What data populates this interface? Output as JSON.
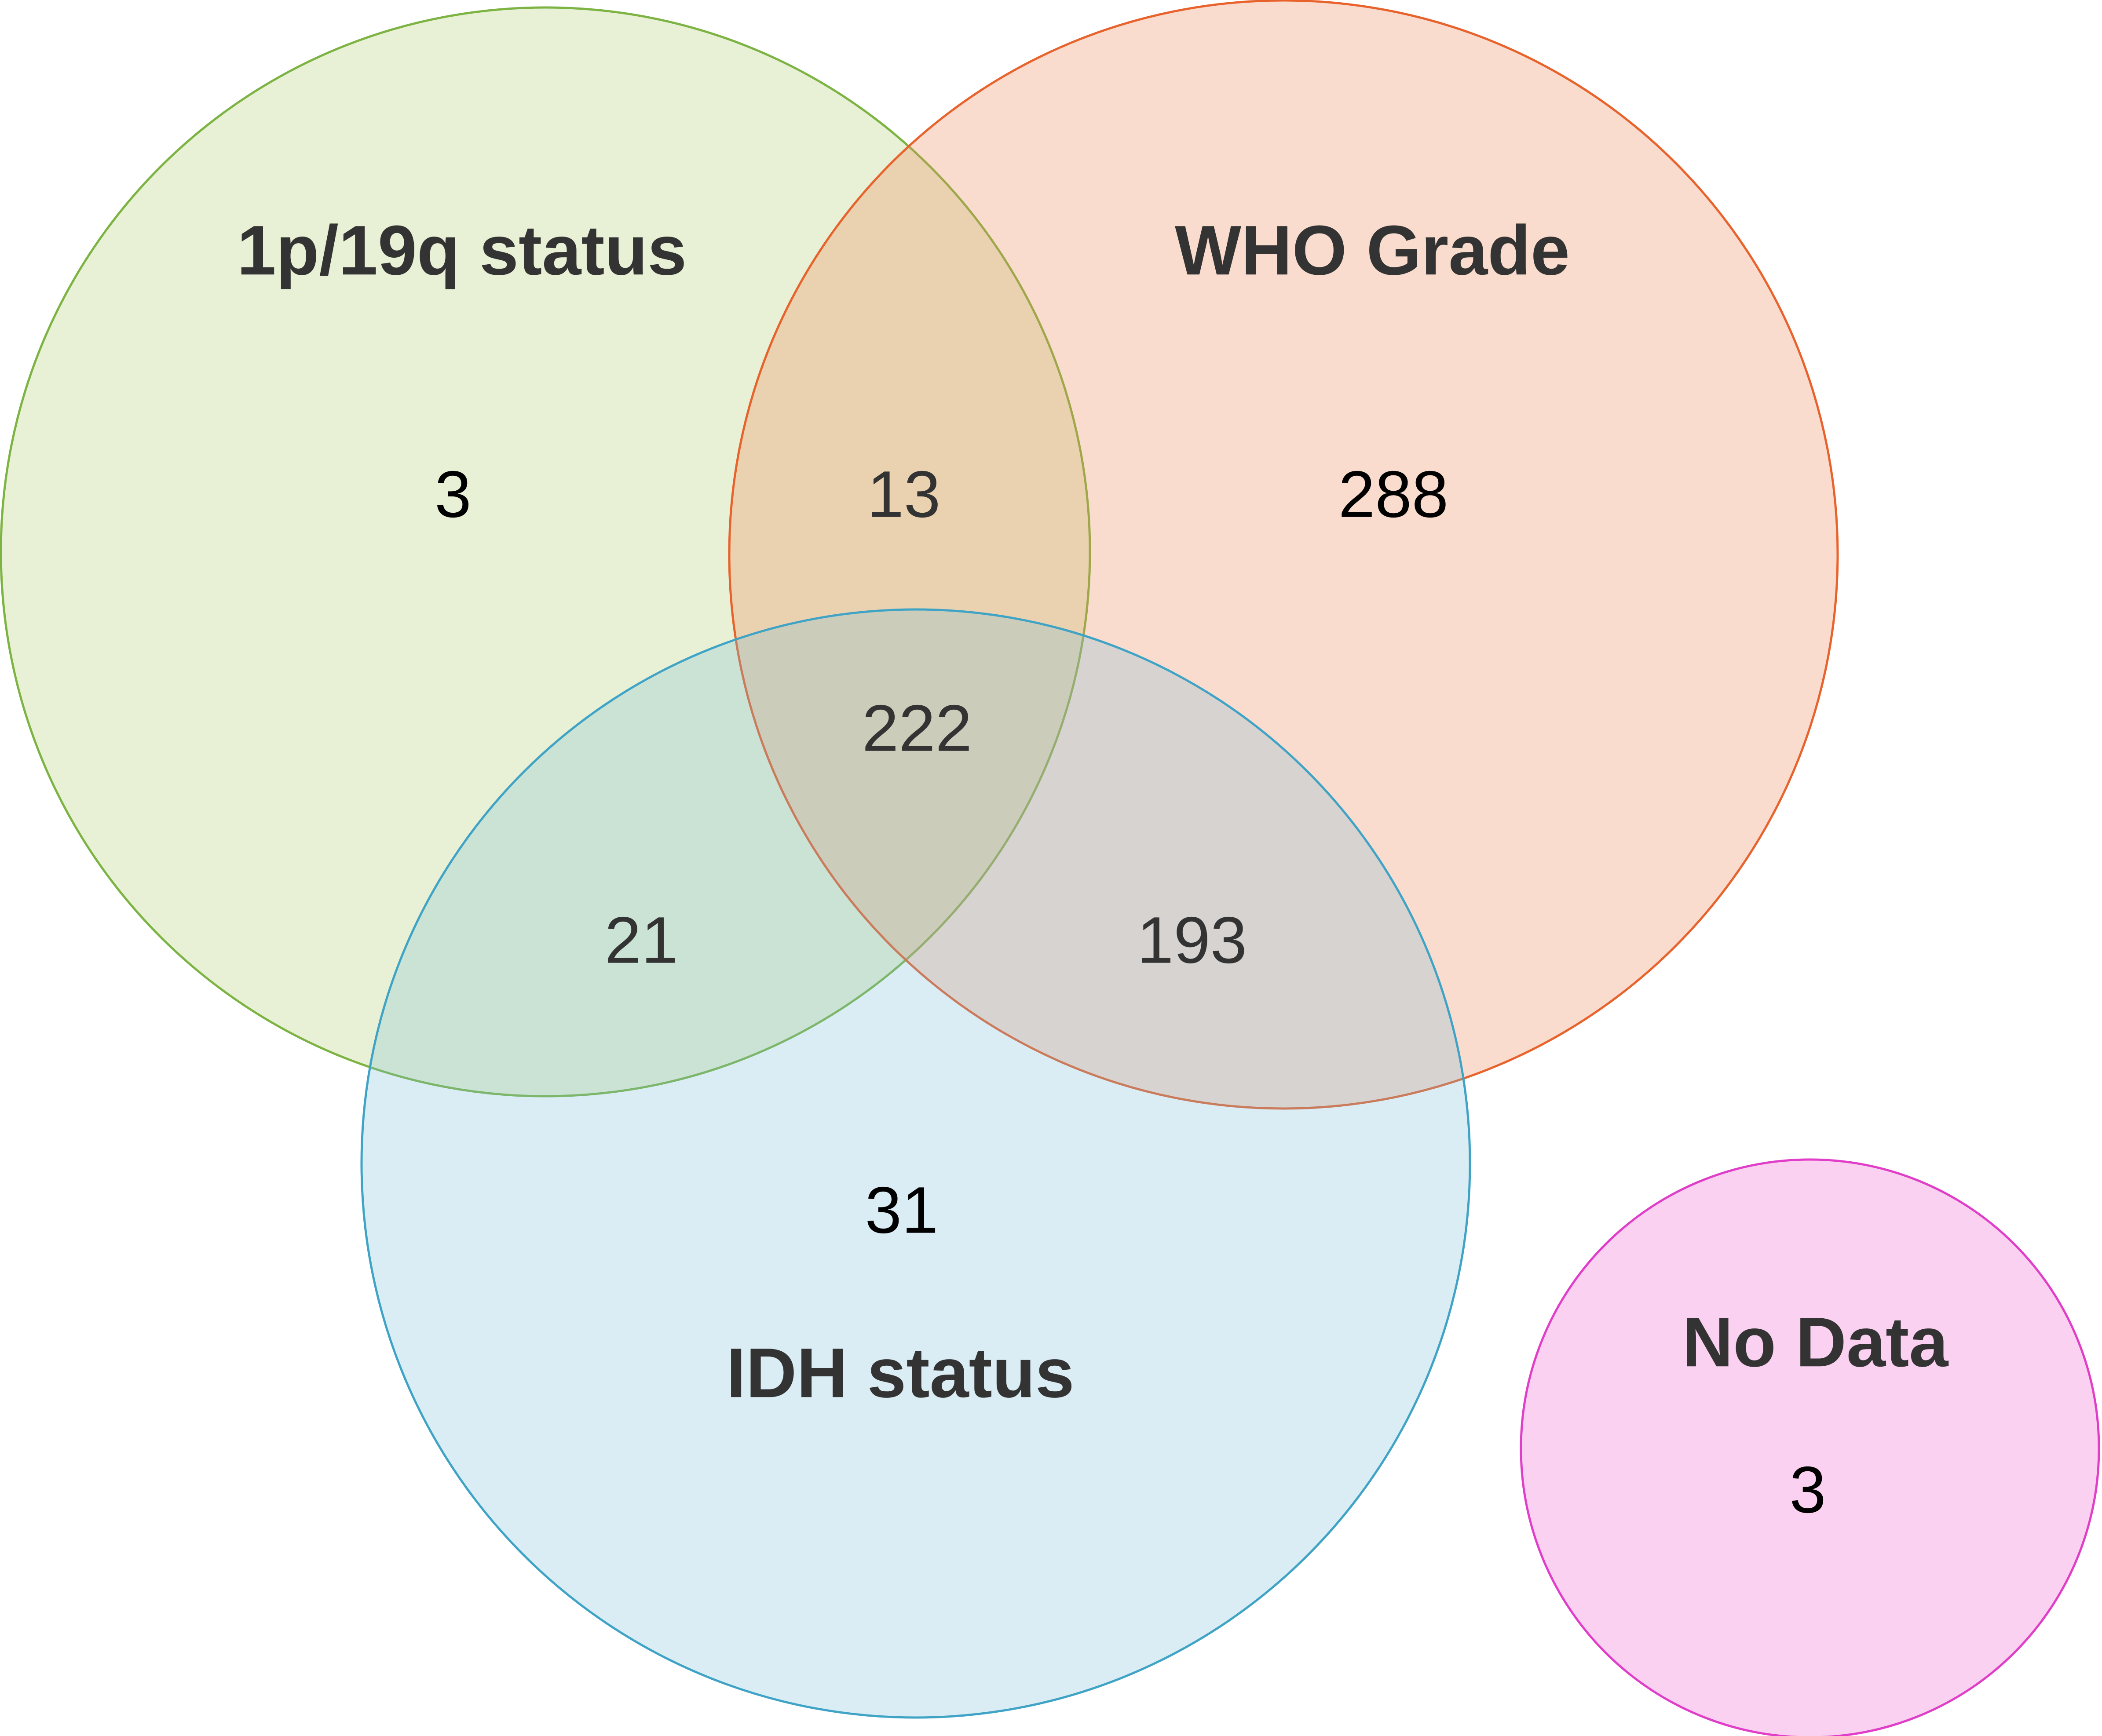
{
  "sets": [
    {
      "id": "1p19q",
      "label": "1p/19q status",
      "fill": "#8DB92E",
      "stroke": "#7CB342"
    },
    {
      "id": "who",
      "label": "WHO Grade",
      "fill": "#F08A5D",
      "stroke": "#E8622C"
    },
    {
      "id": "idh",
      "label": "IDH status",
      "fill": "#7EC0D8",
      "stroke": "#3FA3C6"
    },
    {
      "id": "nodata",
      "label": "No Data",
      "fill": "#F5A3E2",
      "stroke": "#E03EC8"
    }
  ],
  "regions": {
    "only_1p19q": "3",
    "1p19q_who": "13",
    "only_who": "288",
    "all_three": "222",
    "1p19q_idh": "21",
    "who_idh": "193",
    "only_idh": "31",
    "no_data": "3"
  }
}
